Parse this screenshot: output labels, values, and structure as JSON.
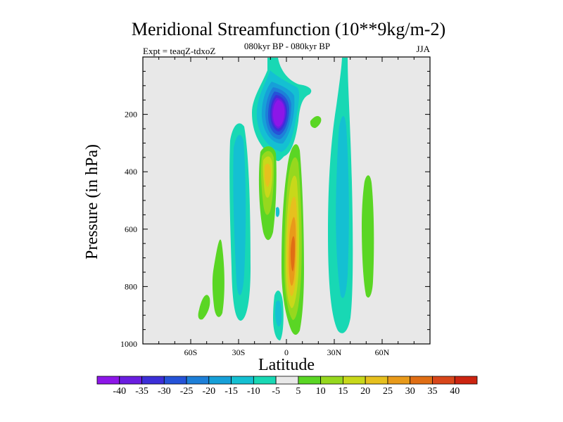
{
  "chart_data": {
    "type": "heatmap",
    "title": "Meridional Streamfunction (10**9kg/m-2)",
    "left_label": "Expt = teaqZ-tdxoZ",
    "center_label": "080kyr BP - 080kyr BP",
    "right_label": "JJA",
    "xlabel": "Latitude",
    "ylabel": "Pressure (in hPa)",
    "xlim": [
      -90,
      90
    ],
    "ylim": [
      1000,
      0
    ],
    "x_ticks": [
      {
        "value": -60,
        "label": "60S"
      },
      {
        "value": -30,
        "label": "30S"
      },
      {
        "value": 0,
        "label": "0"
      },
      {
        "value": 30,
        "label": "30N"
      },
      {
        "value": 60,
        "label": "60N"
      }
    ],
    "y_ticks": [
      {
        "value": 200,
        "label": "200"
      },
      {
        "value": 400,
        "label": "400"
      },
      {
        "value": 600,
        "label": "600"
      },
      {
        "value": 800,
        "label": "800"
      },
      {
        "value": 1000,
        "label": "1000"
      }
    ],
    "colorbar": {
      "labels": [
        "-40",
        "-35",
        "-30",
        "-25",
        "-20",
        "-15",
        "-10",
        "-5",
        "5",
        "10",
        "15",
        "20",
        "25",
        "30",
        "35",
        "40"
      ],
      "colors": [
        "#8d16e8",
        "#6a1ee0",
        "#3c2fd8",
        "#2553d8",
        "#1d7fd8",
        "#16a0d8",
        "#14c0d2",
        "#18d8b4",
        "#e8e8e8",
        "#5ad624",
        "#96d81e",
        "#c8d81a",
        "#e6c01e",
        "#e89a1a",
        "#e06e14",
        "#d8461a",
        "#cc2410"
      ]
    },
    "features": [
      {
        "name": "upper-trop-minimum-outer",
        "lat": -6,
        "p": 190,
        "value": -20
      },
      {
        "name": "upper-trop-minimum-core",
        "lat": -4,
        "p": 200,
        "value": -40
      },
      {
        "name": "equatorial-positive-cell",
        "lat": 6,
        "p": 650,
        "value": 30
      },
      {
        "name": "sh-subtropical-positive",
        "lat": -12,
        "p": 420,
        "value": 20
      },
      {
        "name": "sh-midlat-negative-band",
        "lat": -28,
        "p": 560,
        "value": -10
      },
      {
        "name": "nh-tropical-negative-band",
        "lat": 32,
        "p": 520,
        "value": -10
      },
      {
        "name": "nh-midlat-positive-band",
        "lat": 52,
        "p": 650,
        "value": 10
      },
      {
        "name": "sh-positive-band",
        "lat": -42,
        "p": 770,
        "value": 10
      }
    ]
  }
}
